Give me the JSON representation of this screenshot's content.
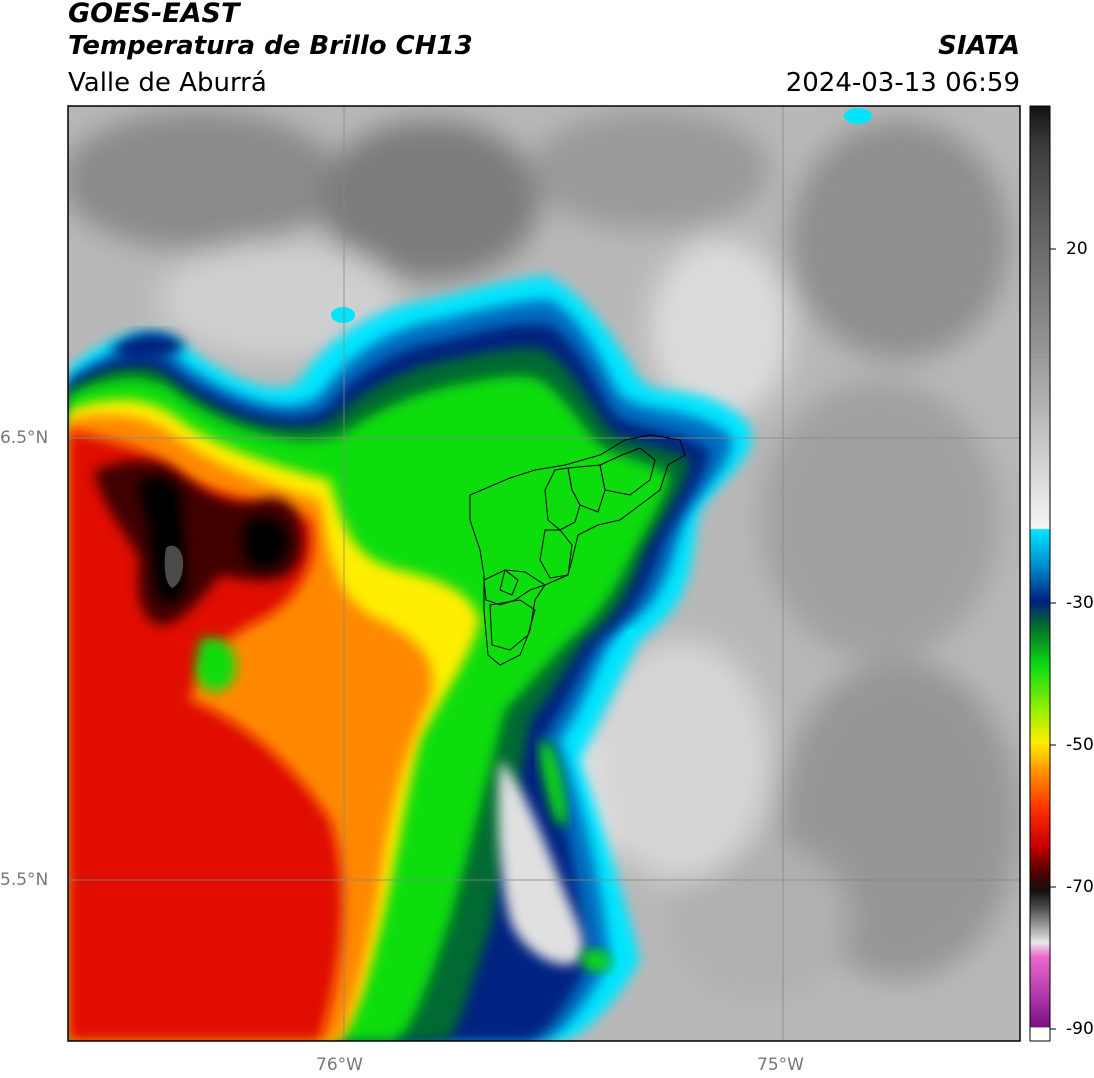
{
  "header": {
    "title": "GOES-EAST",
    "subtitle": "Temperatura de Brillo CH13",
    "region": "Valle de Aburrá",
    "organization": "SIATA",
    "datetime": "2024-03-13 06:59"
  },
  "map": {
    "lon_labels": [
      "76°W",
      "75°W"
    ],
    "lat_labels": [
      "6.5°N",
      "5.5°N"
    ],
    "gridlines": true,
    "overlay": "municipal boundaries"
  },
  "colorbar": {
    "tick_labels": [
      "20",
      "-30",
      "-50",
      "-70",
      "-90"
    ],
    "colors": {
      "black": "#000000",
      "cyan": "#00e5ff",
      "dark_blue": "#002080",
      "green": "#10dd10",
      "yellow": "#ffee00",
      "orange": "#ff8800",
      "red": "#e01000",
      "dark_red": "#400000",
      "magenta": "#dd44cc",
      "purple": "#7a1080"
    }
  }
}
